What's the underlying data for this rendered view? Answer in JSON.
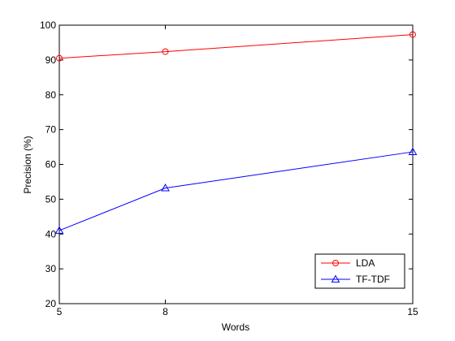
{
  "chart_data": {
    "type": "line",
    "xlabel": "Words",
    "ylabel": "Precision (%)",
    "x": [
      5,
      8,
      15
    ],
    "xlim": [
      5,
      15
    ],
    "ylim": [
      20,
      100
    ],
    "xticks": [
      "5",
      "8",
      "15"
    ],
    "yticks": [
      "20",
      "30",
      "40",
      "50",
      "60",
      "70",
      "80",
      "90",
      "100"
    ],
    "grid": false,
    "legend_position": "bottom-right",
    "series": [
      {
        "name": "LDA",
        "values": [
          90.5,
          92.4,
          97.3
        ],
        "color": "#ff0000",
        "marker": "circle"
      },
      {
        "name": "TF-TDF",
        "values": [
          41.0,
          53.2,
          63.6
        ],
        "color": "#0000ff",
        "marker": "triangle"
      }
    ]
  }
}
